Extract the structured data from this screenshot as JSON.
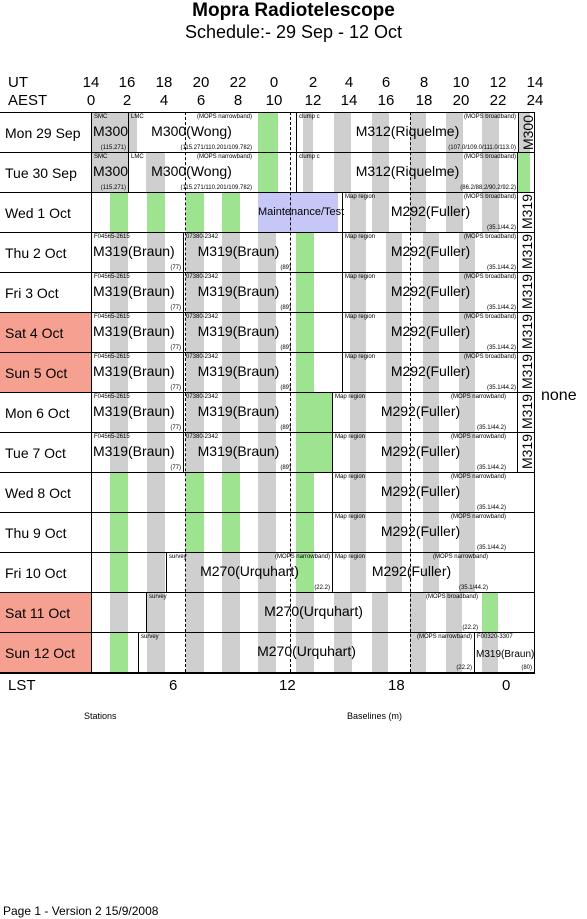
{
  "title": "Mopra Radiotelescope",
  "subtitle": "Schedule:- 29 Sep - 12 Oct",
  "header": {
    "ut_label": "UT",
    "aest_label": "AEST",
    "ut_ticks": [
      "14",
      "16",
      "18",
      "20",
      "22",
      "0",
      "2",
      "4",
      "6",
      "8",
      "10",
      "12",
      "14"
    ],
    "aest_ticks": [
      "0",
      "2",
      "4",
      "6",
      "8",
      "10",
      "12",
      "14",
      "16",
      "18",
      "20",
      "22",
      "24"
    ]
  },
  "days": [
    {
      "label": "Mon 29 Sep",
      "weekend": false
    },
    {
      "label": "Tue 30 Sep",
      "weekend": false
    },
    {
      "label": "Wed 1 Oct",
      "weekend": false
    },
    {
      "label": "Thu 2 Oct",
      "weekend": false
    },
    {
      "label": "Fri 3 Oct",
      "weekend": false
    },
    {
      "label": "Sat 4 Oct",
      "weekend": true
    },
    {
      "label": "Sun 5 Oct",
      "weekend": true
    },
    {
      "label": "Mon 6 Oct",
      "weekend": false
    },
    {
      "label": "Tue 7 Oct",
      "weekend": false
    },
    {
      "label": "Wed 8 Oct",
      "weekend": false
    },
    {
      "label": "Thu 9 Oct",
      "weekend": false
    },
    {
      "label": "Fri 10 Oct",
      "weekend": false
    },
    {
      "label": "Sat 11 Oct",
      "weekend": true
    },
    {
      "label": "Sun 12 Oct",
      "weekend": true
    }
  ],
  "blocks": {
    "mon29": {
      "smc": "SMC",
      "m300": "M300",
      "m300_freq": "(115.271)",
      "lmc": "LMC",
      "lmc_mode": "(MOPS narrowband)",
      "wong": "M300(Wong)",
      "wong_freq": "(115.271/110.201/109.782)",
      "clump": "clump c",
      "mops_bb": "(MOPS broadband)",
      "riq": "M312(Riquelme)",
      "riq_freq": "(107.0/109.0/111.0/113.0)",
      "m300_vert": "M300"
    },
    "tue30": {
      "smc": "SMC",
      "m300": "M300",
      "m300_freq": "(115.271)",
      "lmc": "LMC",
      "lmc_mode": "(MOPS narrowband)",
      "wong": "M300(Wong)",
      "wong_freq": "(115.271/110.201/109.782)",
      "clump": "clump c",
      "mops_bb": "(MOPS broadband)",
      "riq": "M312(Riquelme)",
      "riq_freq": "(86.2/88.2/90.2/92.2)"
    },
    "maintenance": "Maintenance/Test",
    "map_region": "Map region",
    "mops_bb": "(MOPS broadband)",
    "mops_nb": "(MOPS narrowband)",
    "fuller": "M292(Fuller)",
    "fuller_freq": "(35.1/44.2)",
    "braun_src1": "F04565-2615",
    "braun_src2": "07380-2342",
    "braun": "M319(Braun)",
    "braun_f1": "(77)",
    "braun_f2": "(89)",
    "m319_vert": "M319",
    "none": "none",
    "survey": "survey",
    "urquhart": "M270(Urquhart)",
    "urq_freq": "(22.2)",
    "sun_src": "F00320-3307",
    "sun_braun": "M319(Braun)",
    "sun_braun_f": "(80)"
  },
  "lst": {
    "label": "LST",
    "ticks": [
      "6",
      "12",
      "18",
      "0"
    ]
  },
  "footer_labels": {
    "stations": "Stations",
    "baselines": "Baselines (m)"
  },
  "page_footer": "Page 1 - Version 2  15/9/2008"
}
